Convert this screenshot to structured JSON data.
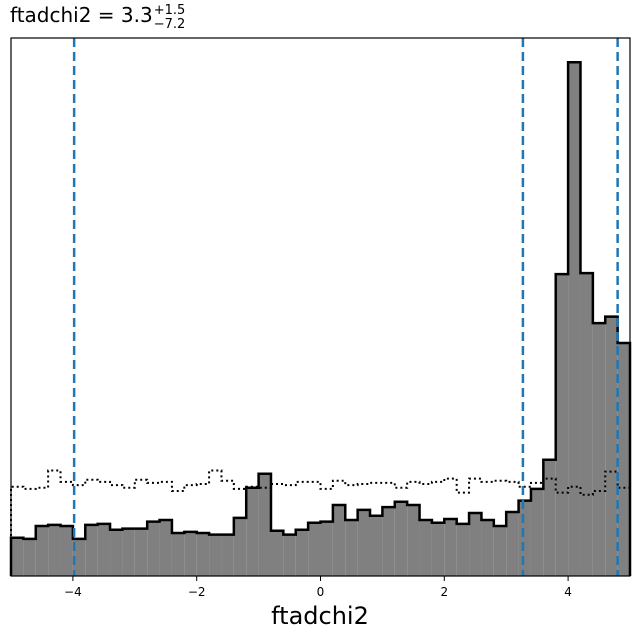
{
  "chart_data": {
    "type": "histogram",
    "title": {
      "text": "ftadchi2 = 3.3",
      "upper": "+1.5",
      "lower": "−7.2"
    },
    "xlabel": "ftadchi2",
    "ylabel": "",
    "xlim": [
      -5,
      5
    ],
    "ylim": [
      0,
      1.0
    ],
    "show_y_ticks": false,
    "grid": false,
    "x_ticks": [
      -4,
      -2,
      0,
      2,
      4
    ],
    "x_tick_labels": [
      "−4",
      "−2",
      "0",
      "2",
      "4"
    ],
    "bin_edges": [
      -5.0,
      -4.8,
      -4.6,
      -4.4,
      -4.2,
      -4.0,
      -3.8,
      -3.6,
      -3.4,
      -3.2,
      -3.0,
      -2.8,
      -2.6,
      -2.4,
      -2.2,
      -2.0,
      -1.8,
      -1.6,
      -1.4,
      -1.2,
      -1.0,
      -0.8,
      -0.6,
      -0.4,
      -0.2,
      0.0,
      0.2,
      0.4,
      0.6,
      0.8,
      1.0,
      1.2,
      1.4,
      1.6,
      1.8,
      2.0,
      2.2,
      2.4,
      2.6,
      2.8,
      3.0,
      3.2,
      3.4,
      3.6,
      3.8,
      4.0,
      4.2,
      4.4,
      4.6,
      4.8,
      5.0
    ],
    "series": [
      {
        "style": "filled",
        "fill": "#808080",
        "edge": "#000000",
        "values": [
          0.071,
          0.069,
          0.093,
          0.095,
          0.093,
          0.069,
          0.095,
          0.097,
          0.086,
          0.088,
          0.088,
          0.101,
          0.104,
          0.08,
          0.082,
          0.08,
          0.077,
          0.077,
          0.108,
          0.164,
          0.19,
          0.084,
          0.077,
          0.086,
          0.099,
          0.101,
          0.132,
          0.104,
          0.123,
          0.112,
          0.128,
          0.138,
          0.132,
          0.104,
          0.099,
          0.106,
          0.097,
          0.117,
          0.104,
          0.093,
          0.119,
          0.14,
          0.162,
          0.216,
          0.561,
          0.955,
          0.563,
          0.47,
          0.482,
          0.433
        ]
      },
      {
        "style": "step-dotted",
        "edge": "#000000",
        "values": [
          0.166,
          0.162,
          0.164,
          0.196,
          0.175,
          0.169,
          0.179,
          0.175,
          0.169,
          0.164,
          0.179,
          0.173,
          0.175,
          0.158,
          0.169,
          0.171,
          0.196,
          0.177,
          0.162,
          0.166,
          0.164,
          0.171,
          0.169,
          0.175,
          0.175,
          0.162,
          0.177,
          0.169,
          0.171,
          0.173,
          0.173,
          0.164,
          0.175,
          0.171,
          0.175,
          0.181,
          0.155,
          0.181,
          0.175,
          0.177,
          0.175,
          0.166,
          0.173,
          0.181,
          0.155,
          0.166,
          0.151,
          0.158,
          0.194,
          0.164
        ]
      }
    ],
    "vlines": [
      -3.98,
      3.27,
      4.8
    ],
    "vline_color": "#1f77b4"
  }
}
